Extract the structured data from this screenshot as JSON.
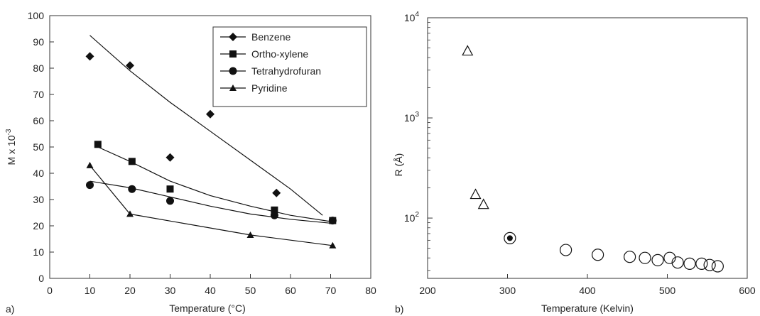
{
  "chart_data": [
    {
      "type": "scatter",
      "panel_label": "a)",
      "xlabel": "Temperature (°C)",
      "ylabel": "M x 10",
      "ylabel_exp": "-3",
      "xlim": [
        0,
        80
      ],
      "ylim": [
        0,
        100
      ],
      "xticks": [
        "0",
        "10",
        "20",
        "30",
        "40",
        "50",
        "60",
        "70",
        "80"
      ],
      "yticks": [
        "0",
        "10",
        "20",
        "30",
        "40",
        "50",
        "60",
        "70",
        "80",
        "90",
        "100"
      ],
      "legend_position": "top-right",
      "series": [
        {
          "name": "Benzene",
          "marker": "diamond",
          "points": [
            [
              10,
              84.5
            ],
            [
              20,
              81
            ],
            [
              40,
              62.5
            ],
            [
              30,
              46
            ],
            [
              56.5,
              32.5
            ]
          ],
          "fit": [
            [
              10,
              92.5
            ],
            [
              20,
              79
            ],
            [
              30,
              67
            ],
            [
              40,
              56
            ],
            [
              50,
              45
            ],
            [
              60,
              34
            ],
            [
              68,
              24
            ]
          ]
        },
        {
          "name": "Ortho-xylene",
          "marker": "square",
          "points": [
            [
              12,
              51
            ],
            [
              20.5,
              44.5
            ],
            [
              30,
              34
            ],
            [
              56,
              26
            ],
            [
              70.5,
              22
            ]
          ],
          "fit": [
            [
              12,
              50
            ],
            [
              20,
              44.5
            ],
            [
              30,
              37
            ],
            [
              40,
              31.5
            ],
            [
              50,
              27.5
            ],
            [
              60,
              24
            ],
            [
              70.5,
              21.5
            ]
          ]
        },
        {
          "name": "Tetrahydrofuran",
          "marker": "circle",
          "points": [
            [
              10,
              35.5
            ],
            [
              20.5,
              34
            ],
            [
              30,
              29.5
            ],
            [
              56,
              24
            ],
            [
              70.5,
              22
            ]
          ],
          "fit": [
            [
              10,
              37
            ],
            [
              20,
              34.5
            ],
            [
              30,
              31
            ],
            [
              40,
              27.5
            ],
            [
              50,
              24.5
            ],
            [
              60,
              22.5
            ],
            [
              70,
              21
            ]
          ]
        },
        {
          "name": "Pyridine",
          "marker": "triangle",
          "points": [
            [
              10,
              43
            ],
            [
              20,
              24.5
            ],
            [
              50,
              16.5
            ],
            [
              70.5,
              12.5
            ]
          ],
          "fit": [
            [
              10,
              43
            ],
            [
              20,
              24.5
            ],
            [
              50,
              16.5
            ],
            [
              70.5,
              12.5
            ]
          ]
        }
      ]
    },
    {
      "type": "scatter",
      "panel_label": "b)",
      "xlabel": "Temperature (Kelvin)",
      "ylabel": "R (Å)",
      "xlim": [
        200,
        600
      ],
      "ylim": [
        25,
        10000
      ],
      "yscale": "log",
      "xticks": [
        "200",
        "300",
        "400",
        "500",
        "600"
      ],
      "yticks": [
        {
          "base": "10",
          "exp": "2",
          "value": 100
        },
        {
          "base": "10",
          "exp": "3",
          "value": 1000
        },
        {
          "base": "10",
          "exp": "4",
          "value": 10000
        }
      ],
      "series": [
        {
          "marker": "open-triangle",
          "points": [
            [
              250,
              4600
            ],
            [
              260,
              170
            ],
            [
              270,
              135
            ]
          ]
        },
        {
          "marker": "filled-circle-in-ring",
          "points": [
            [
              303,
              63
            ]
          ]
        },
        {
          "marker": "open-circle",
          "points": [
            [
              373,
              48
            ],
            [
              413,
              43
            ],
            [
              453,
              41
            ],
            [
              472,
              40
            ],
            [
              488,
              38
            ],
            [
              503,
              40
            ],
            [
              513,
              36
            ],
            [
              528,
              35
            ],
            [
              543,
              35
            ],
            [
              553,
              34
            ],
            [
              563,
              33
            ]
          ]
        }
      ]
    }
  ]
}
